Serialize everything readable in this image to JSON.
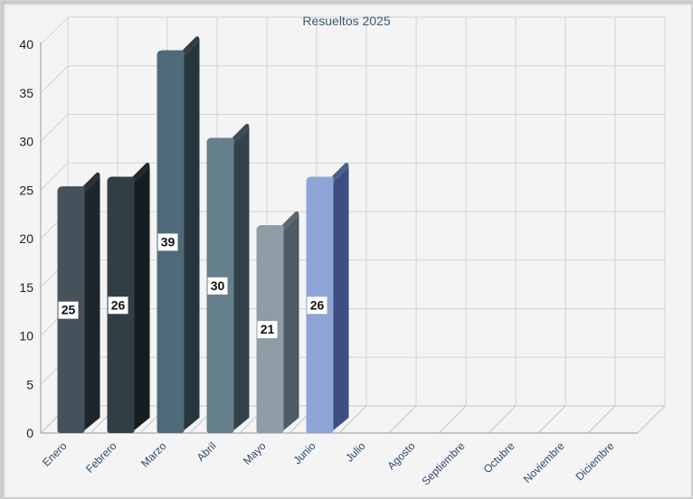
{
  "chart_data": {
    "type": "bar",
    "title": "Resueltos 2025",
    "categories": [
      "Enero",
      "Febrero",
      "Marzo",
      "Abril",
      "Mayo",
      "Junio",
      "Julio",
      "Agosto",
      "Septiembre",
      "Octubre",
      "Noviembre",
      "Diciembre"
    ],
    "values": [
      25,
      26,
      39,
      30,
      21,
      26,
      null,
      null,
      null,
      null,
      null,
      null
    ],
    "ylim": [
      0,
      40
    ],
    "yticks": [
      0,
      5,
      10,
      15,
      20,
      25,
      30,
      35,
      40
    ],
    "grid": true,
    "style": "3d-column",
    "colors": {
      "front": [
        "#45515b",
        "#323e46",
        "#4e6a78",
        "#667f8c",
        "#8e9da5",
        "#8ea4d4"
      ],
      "side": [
        "#1e262c",
        "#161d21",
        "#27363e",
        "#34434b",
        "#4d5b62",
        "#3c4f80"
      ],
      "top": [
        "#2a3239",
        "#20282d",
        "#2f3f47",
        "#3c4c55",
        "#59676e",
        "#4a5e8e"
      ]
    }
  }
}
